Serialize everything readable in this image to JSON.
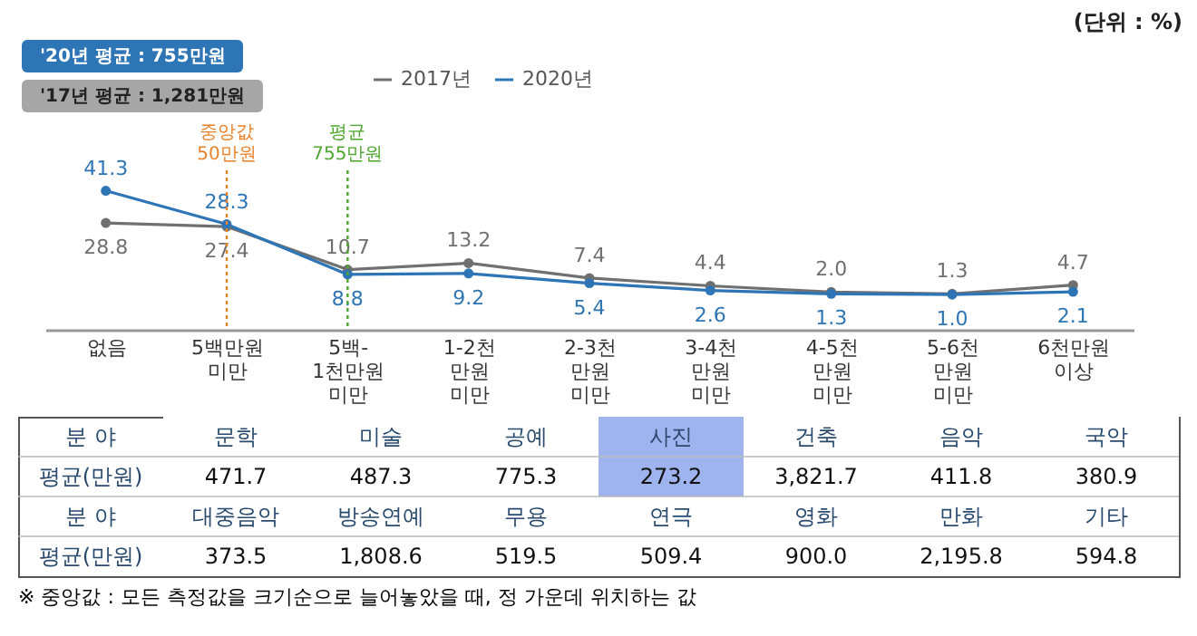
{
  "chart_data": [
    {
      "type": "line",
      "categories": [
        "없음",
        "5백만원\n미만",
        "5백-\n1천만원\n미만",
        "1-2천\n만원\n미만",
        "2-3천\n만원\n미만",
        "3-4천\n만원\n미만",
        "4-5천\n만원\n미만",
        "5-6천\n만원\n미만",
        "6천만원\n이상"
      ],
      "series": [
        {
          "name": "2017년",
          "color": "#707070",
          "values": [
            28.8,
            27.4,
            10.7,
            13.2,
            7.4,
            4.4,
            2.0,
            1.3,
            4.7
          ],
          "value_labels": [
            "28.8",
            "27.4",
            "10.7",
            "13.2",
            "7.4",
            "4.4",
            "2.0",
            "1.3",
            "4.7"
          ]
        },
        {
          "name": "2020년",
          "color": "#2e75b6",
          "values": [
            41.3,
            28.3,
            8.8,
            9.2,
            5.4,
            2.6,
            1.3,
            1.0,
            2.1
          ],
          "value_labels": [
            "41.3",
            "28.3",
            "8.8",
            "9.2",
            "5.4",
            "2.6",
            "1.3",
            "1.0",
            "2.1"
          ]
        }
      ],
      "ref_lines": [
        {
          "axis": "x",
          "value": "5백만원\n미만",
          "label": "중앙값\n50만원",
          "color": "#e8822a",
          "line_style": "dotted"
        },
        {
          "axis": "x",
          "value": "5백-\n1천만원\n미만",
          "label": "평균\n755만원",
          "color": "#4ea72e",
          "line_style": "dotted"
        }
      ],
      "annotations": [
        "'20년 평균 : 755만원",
        "'17년 평균 : 1,281만원",
        "(단위 : %)"
      ],
      "marker": "circle",
      "legend": "top",
      "grid": false,
      "tick_labels": "x"
    },
    {
      "type": "other",
      "xlabel": "분 야",
      "ylabel": "평균(만원)",
      "categories": [
        "문학",
        "미술",
        "공예",
        "사진",
        "건축",
        "음악",
        "국악",
        "대중음악",
        "방송연예",
        "무용",
        "연극",
        "영화",
        "만화",
        "기타"
      ],
      "colors": [
        "#ffffff",
        "#ffffff",
        "#ffffff",
        "#9fb4ef",
        "#ffffff",
        "#ffffff",
        "#ffffff",
        "#ffffff",
        "#ffffff",
        "#ffffff",
        "#ffffff",
        "#ffffff",
        "#ffffff",
        "#ffffff"
      ],
      "value_labels": [
        "471.7",
        "487.3",
        "775.3",
        "273.2",
        "3,821.7",
        "411.8",
        "380.9",
        "373.5",
        "1,808.6",
        "519.5",
        "509.4",
        "900.0",
        "2,195.8",
        "594.8"
      ],
      "annotations": [
        "※ 중앙값 : 모든 측정값을 크기순으로 늘어놓았을 때, 정 가운데 위치하는 값"
      ]
    }
  ]
}
